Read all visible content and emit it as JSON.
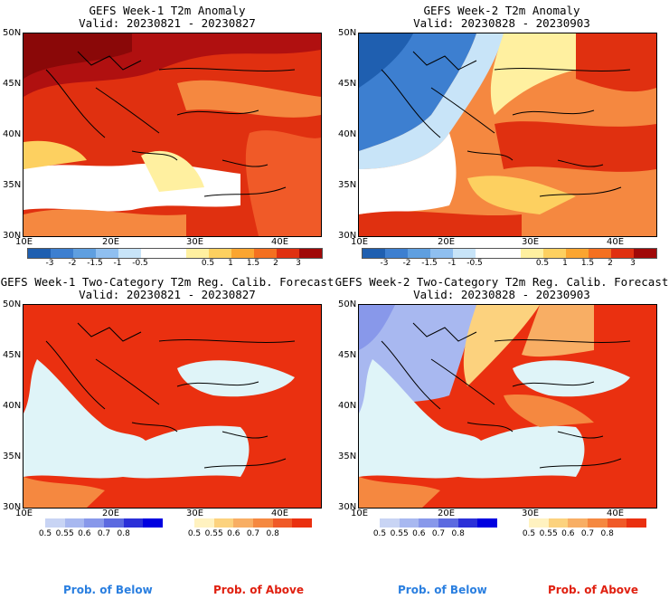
{
  "panels": [
    {
      "title": "GEFS Week-1 T2m Anomaly",
      "valid": "Valid: 20230821 - 20230827"
    },
    {
      "title": "GEFS Week-2 T2m Anomaly",
      "valid": "Valid: 20230828 - 20230903"
    },
    {
      "title": "GEFS Week-1 Two-Category T2m Reg. Calib. Forecast",
      "valid": "Valid: 20230821 - 20230827"
    },
    {
      "title": "GEFS Week-2 Two-Category T2m Reg. Calib. Forecast",
      "valid": "Valid: 20230828 - 20230903"
    }
  ],
  "axes": {
    "lat_labels": [
      "50N",
      "45N",
      "40N",
      "35N",
      "30N"
    ],
    "lon_labels": [
      "10E",
      "20E",
      "30E",
      "40E"
    ]
  },
  "anomaly_scale": {
    "ticks": [
      "-3",
      "-2",
      "-1.5",
      "-1",
      "-0.5",
      "0.5",
      "1",
      "1.5",
      "2",
      "3"
    ],
    "colors": [
      "#1f5fb0",
      "#3d7fd0",
      "#5f9fe0",
      "#8fbff0",
      "#c8e4f8",
      "#ffffff",
      "#ffffff",
      "#fff0a0",
      "#fdd060",
      "#fba530",
      "#f47020",
      "#e03010",
      "#a00808"
    ]
  },
  "prob_scale": {
    "below_ticks": [
      "0.5",
      "0.55",
      "0.6",
      "0.7",
      "0.8"
    ],
    "above_ticks": [
      "0.5",
      "0.55",
      "0.6",
      "0.7",
      "0.8"
    ],
    "below_colors": [
      "#c8d4f4",
      "#a8b8f0",
      "#8898ea",
      "#5c6ae0",
      "#2b30d8",
      "#0000e0"
    ],
    "above_colors": [
      "#fff2c0",
      "#fcd27e",
      "#f8ae64",
      "#f58840",
      "#f05a28",
      "#ea3010"
    ]
  },
  "footer": {
    "below_label": "Prob. of Below",
    "above_label": "Prob. of Above",
    "below_color": "#2a7fe0",
    "above_color": "#e02010"
  }
}
